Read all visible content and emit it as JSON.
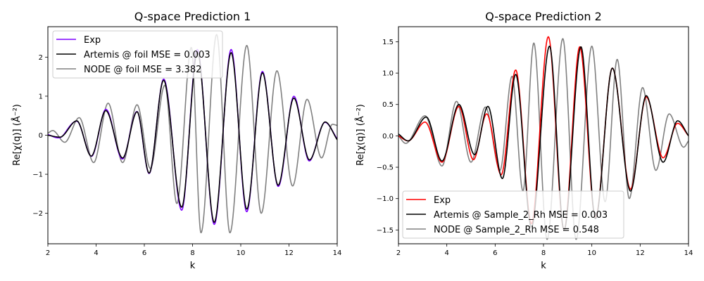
{
  "chart_data": [
    {
      "type": "line",
      "title": "Q-space Prediction 1",
      "xlabel": "k",
      "ylabel": "Re[χ(q)] (Å⁻²)",
      "xlim": [
        2,
        14
      ],
      "ylim": [
        -2.78,
        2.78
      ],
      "xticks": [
        2,
        4,
        6,
        8,
        10,
        12,
        14
      ],
      "yticks": [
        -2,
        -1,
        0,
        1,
        2
      ],
      "legend_position": "top-left",
      "grid": false,
      "series": [
        {
          "name": "Exp",
          "color": "#7f00ff",
          "model": {
            "type": "exp",
            "shift": 0.0,
            "amp": 1.0,
            "noise": 0.02
          }
        },
        {
          "name": "Artemis @ foil MSE = 0.003",
          "color": "#000000",
          "model": {
            "type": "exp",
            "shift": 0.0,
            "amp": 0.97,
            "noise": 0.0
          }
        },
        {
          "name": "NODE @ foil MSE = 3.382",
          "color": "#808080",
          "model": {
            "type": "node"
          }
        }
      ],
      "anchors": {
        "exp": [
          [
            2.0,
            0.0
          ],
          [
            2.5,
            -0.05
          ],
          [
            3.2,
            0.38
          ],
          [
            3.8,
            -0.55
          ],
          [
            4.4,
            0.65
          ],
          [
            5.1,
            -0.6
          ],
          [
            5.7,
            0.62
          ],
          [
            6.2,
            -1.0
          ],
          [
            6.8,
            1.45
          ],
          [
            7.55,
            -1.9
          ],
          [
            8.2,
            2.2
          ],
          [
            8.9,
            -2.3
          ],
          [
            9.6,
            2.18
          ],
          [
            10.25,
            -1.95
          ],
          [
            10.9,
            1.65
          ],
          [
            11.55,
            -1.32
          ],
          [
            12.2,
            0.98
          ],
          [
            12.85,
            -0.65
          ],
          [
            13.5,
            0.35
          ],
          [
            14.0,
            -0.12
          ]
        ],
        "node": [
          [
            2.0,
            0.05
          ],
          [
            2.2,
            0.12
          ],
          [
            2.7,
            -0.18
          ],
          [
            3.3,
            0.45
          ],
          [
            3.9,
            -0.7
          ],
          [
            4.5,
            0.82
          ],
          [
            5.1,
            -0.7
          ],
          [
            5.7,
            0.78
          ],
          [
            6.25,
            -0.85
          ],
          [
            6.85,
            1.28
          ],
          [
            7.35,
            -1.75
          ],
          [
            7.95,
            2.25
          ],
          [
            8.35,
            -2.5
          ],
          [
            9.0,
            2.58
          ],
          [
            9.55,
            -2.5
          ],
          [
            10.25,
            2.3
          ],
          [
            10.85,
            -2.0
          ],
          [
            11.5,
            1.65
          ],
          [
            12.15,
            -1.3
          ],
          [
            12.75,
            0.92
          ],
          [
            13.35,
            -0.58
          ],
          [
            13.8,
            0.28
          ],
          [
            14.0,
            0.25
          ]
        ]
      }
    },
    {
      "type": "line",
      "title": "Q-space Prediction 2",
      "xlabel": "k",
      "ylabel": "Re[χ(q)] (Å⁻²)",
      "xlim": [
        2,
        14
      ],
      "ylim": [
        -1.72,
        1.74
      ],
      "xticks": [
        2,
        4,
        6,
        8,
        10,
        12,
        14
      ],
      "yticks": [
        -1.5,
        -1.0,
        -0.5,
        0.0,
        0.5,
        1.0,
        1.5
      ],
      "legend_position": "bottom-left",
      "grid": false,
      "series": [
        {
          "name": "Exp",
          "color": "#ff0000",
          "model": {
            "type": "exp",
            "shift": 0.0,
            "amp": 1.0,
            "noise": 0.0
          }
        },
        {
          "name": "Artemis @ Sample_2_Rh MSE = 0.003",
          "color": "#000000",
          "model": {
            "type": "art",
            "shift": 0.0,
            "amp": 1.0,
            "noise": 0.0
          }
        },
        {
          "name": "NODE @ Sample_2_Rh MSE = 0.548",
          "color": "#808080",
          "model": {
            "type": "node"
          }
        }
      ],
      "anchors": {
        "exp": [
          [
            2.0,
            0.0
          ],
          [
            2.4,
            -0.08
          ],
          [
            3.1,
            0.22
          ],
          [
            3.8,
            -0.42
          ],
          [
            4.5,
            0.47
          ],
          [
            5.1,
            -0.38
          ],
          [
            5.65,
            0.35
          ],
          [
            6.25,
            -0.62
          ],
          [
            6.85,
            1.05
          ],
          [
            7.5,
            -1.4
          ],
          [
            8.2,
            1.58
          ],
          [
            8.85,
            -1.5
          ],
          [
            9.5,
            1.42
          ],
          [
            10.15,
            -1.3
          ],
          [
            10.85,
            1.08
          ],
          [
            11.6,
            -0.85
          ],
          [
            12.25,
            0.62
          ],
          [
            12.95,
            -0.35
          ],
          [
            13.55,
            0.2
          ],
          [
            14.0,
            0.0
          ]
        ],
        "art": [
          [
            2.0,
            0.03
          ],
          [
            2.4,
            -0.08
          ],
          [
            3.15,
            0.3
          ],
          [
            3.8,
            -0.4
          ],
          [
            4.5,
            0.5
          ],
          [
            5.15,
            -0.3
          ],
          [
            5.7,
            0.47
          ],
          [
            6.3,
            -0.68
          ],
          [
            6.85,
            0.98
          ],
          [
            7.5,
            -1.45
          ],
          [
            8.25,
            1.43
          ],
          [
            8.85,
            -1.5
          ],
          [
            9.55,
            1.42
          ],
          [
            10.15,
            -1.32
          ],
          [
            10.85,
            1.08
          ],
          [
            11.6,
            -0.88
          ],
          [
            12.25,
            0.64
          ],
          [
            12.95,
            -0.42
          ],
          [
            13.55,
            0.24
          ],
          [
            14.0,
            0.0
          ]
        ],
        "node": [
          [
            2.0,
            0.0
          ],
          [
            2.3,
            -0.12
          ],
          [
            3.1,
            0.32
          ],
          [
            3.8,
            -0.48
          ],
          [
            4.4,
            0.55
          ],
          [
            5.0,
            -0.42
          ],
          [
            5.6,
            0.46
          ],
          [
            6.2,
            -0.55
          ],
          [
            6.7,
            0.95
          ],
          [
            7.15,
            -0.88
          ],
          [
            7.6,
            1.48
          ],
          [
            8.15,
            -1.65
          ],
          [
            8.8,
            1.55
          ],
          [
            9.35,
            -1.65
          ],
          [
            10.0,
            1.43
          ],
          [
            10.55,
            -1.05
          ],
          [
            11.05,
            1.22
          ],
          [
            11.55,
            -1.0
          ],
          [
            12.1,
            0.77
          ],
          [
            12.65,
            -0.55
          ],
          [
            13.2,
            0.35
          ],
          [
            13.8,
            -0.18
          ],
          [
            14.0,
            -0.08
          ]
        ]
      }
    }
  ]
}
